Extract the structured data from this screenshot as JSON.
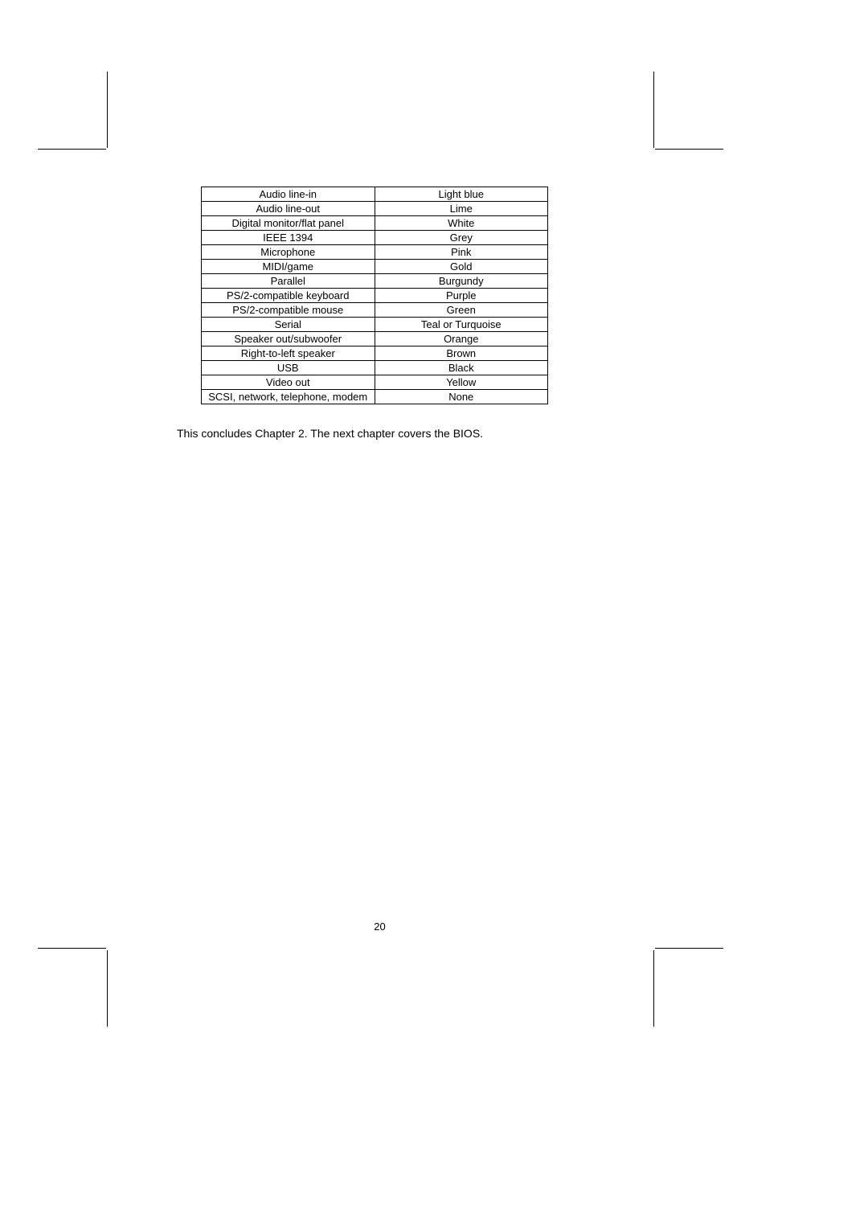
{
  "table": {
    "type": "table",
    "columns_count": 2,
    "border_color": "#000000",
    "text_color": "#000000",
    "background_color": "#ffffff",
    "font_size_pt": 10,
    "cell_alignment": "center",
    "column_widths_pct": [
      50,
      50
    ],
    "rows": [
      [
        "Audio line-in",
        "Light blue"
      ],
      [
        "Audio line-out",
        "Lime"
      ],
      [
        "Digital monitor/flat panel",
        "White"
      ],
      [
        "IEEE 1394",
        "Grey"
      ],
      [
        "Microphone",
        "Pink"
      ],
      [
        "MIDI/game",
        "Gold"
      ],
      [
        "Parallel",
        "Burgundy"
      ],
      [
        "PS/2-compatible keyboard",
        "Purple"
      ],
      [
        "PS/2-compatible mouse",
        "Green"
      ],
      [
        "Serial",
        "Teal or Turquoise"
      ],
      [
        "Speaker out/subwoofer",
        "Orange"
      ],
      [
        "Right-to-left speaker",
        "Brown"
      ],
      [
        "USB",
        "Black"
      ],
      [
        "Video out",
        "Yellow"
      ],
      [
        "SCSI, network, telephone, modem",
        "None"
      ]
    ]
  },
  "conclusion_text": "This concludes Chapter 2. The next chapter covers the BIOS.",
  "page_number": "20",
  "page": {
    "background_color": "#ffffff",
    "text_color": "#000000",
    "crop_mark_color": "#000000"
  }
}
